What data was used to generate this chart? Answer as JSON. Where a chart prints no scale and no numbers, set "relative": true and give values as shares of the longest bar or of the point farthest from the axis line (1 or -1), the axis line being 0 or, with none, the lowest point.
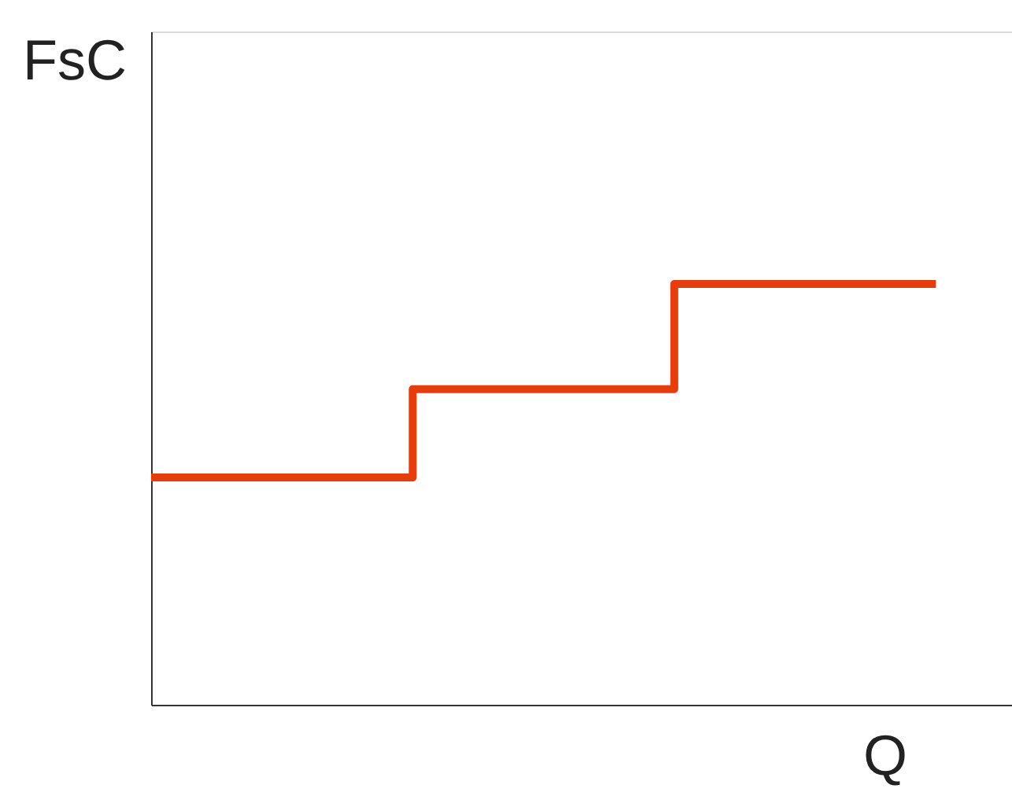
{
  "chart_data": {
    "type": "step",
    "xlabel": "Q",
    "ylabel": "FsC",
    "relative": true,
    "line_style": "solid",
    "categories": [
      null,
      null,
      null,
      null
    ],
    "series": [
      {
        "color": "#e83c0a",
        "values": [
          0.54,
          0.75,
          1,
          1
        ]
      }
    ]
  }
}
